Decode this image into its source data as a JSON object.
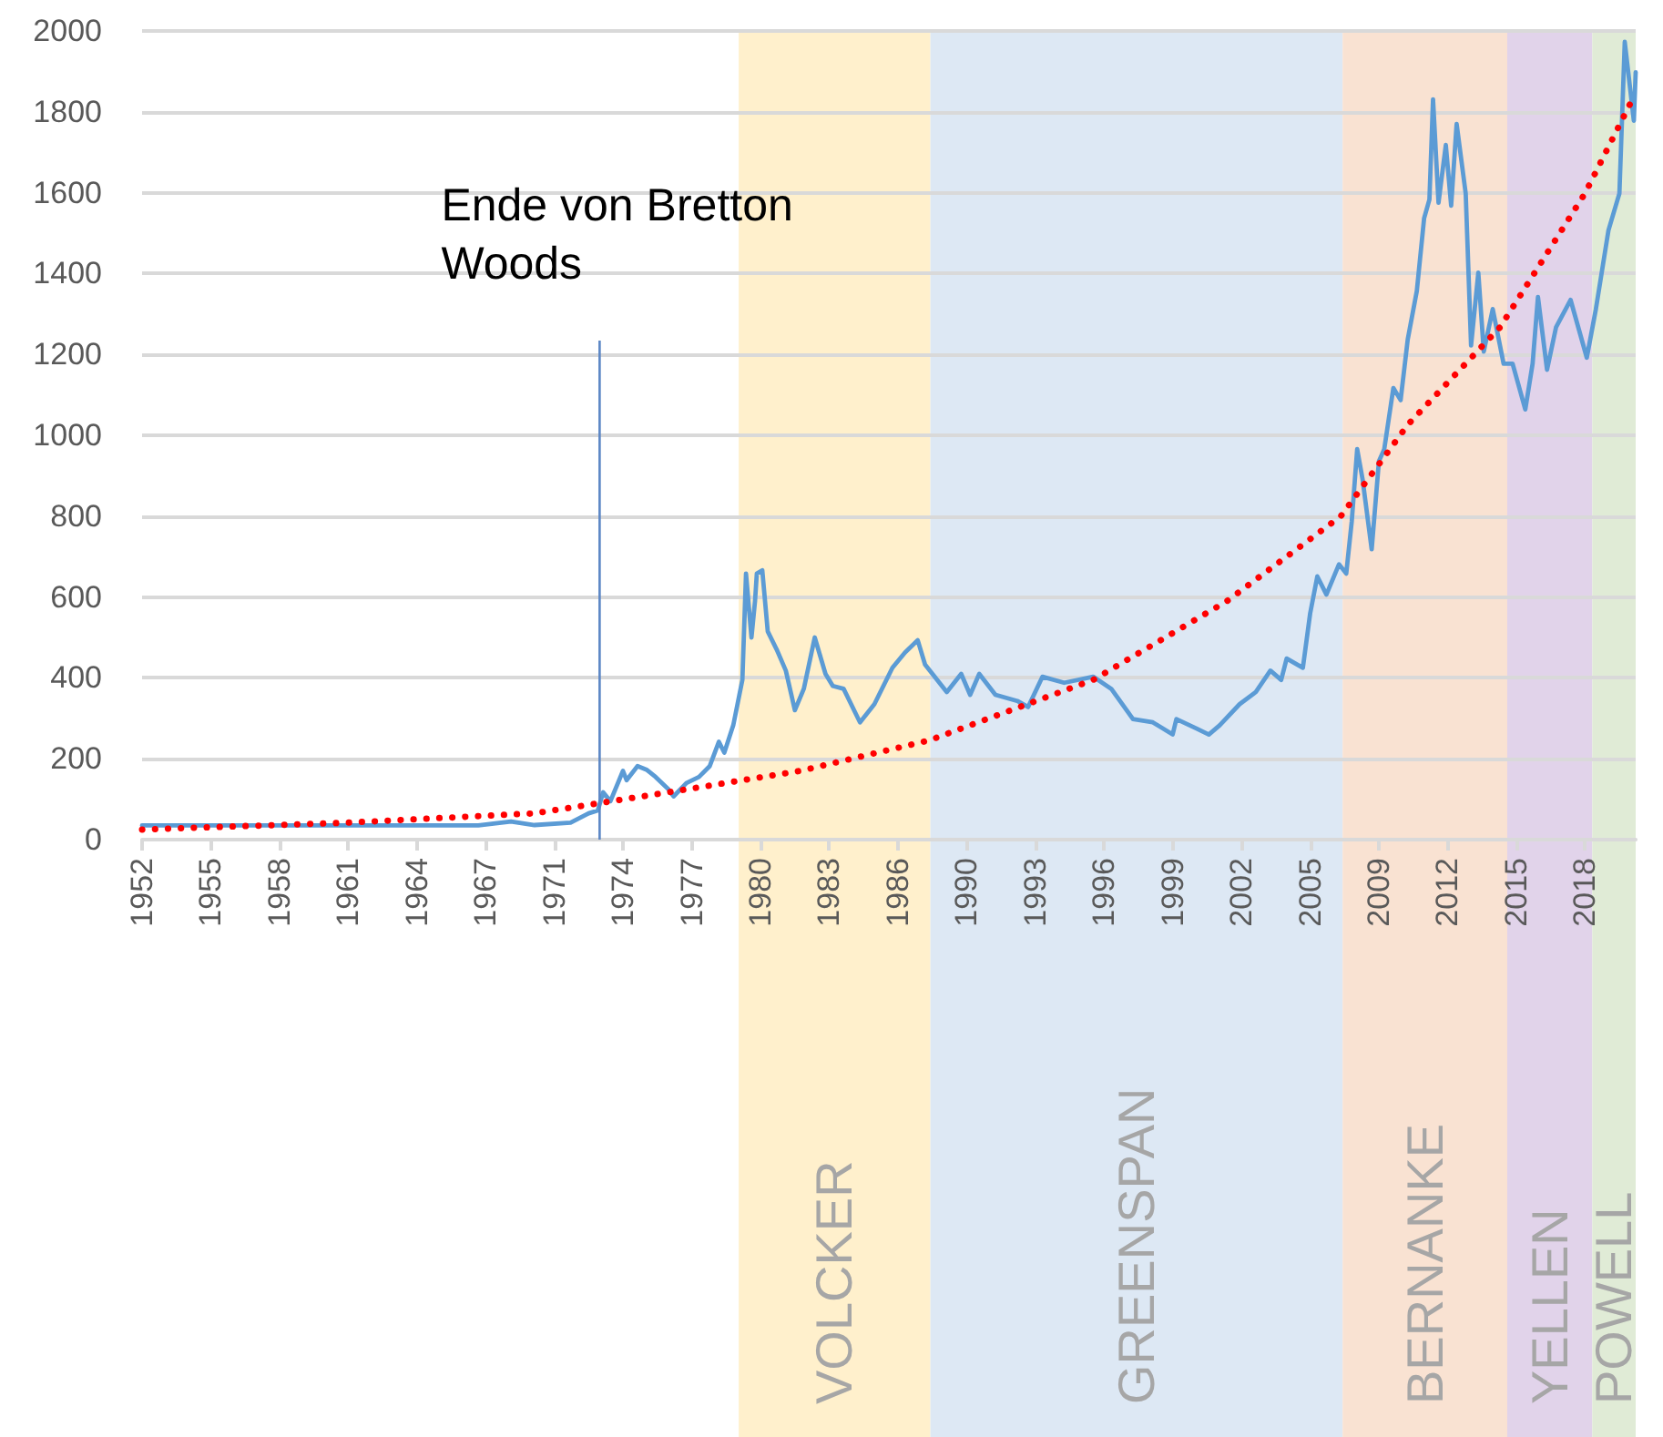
{
  "chart_data": {
    "type": "line",
    "series": [
      {
        "color": "#5b9bd5",
        "x": [
          "1952-01",
          "1967-07",
          "1969-01",
          "1970-02",
          "1971-10",
          "1972-08",
          "1973-01",
          "1973-04",
          "1973-08",
          "1974-03",
          "1974-05",
          "1974-11",
          "1975-04",
          "1975-09",
          "1976-04",
          "1976-07",
          "1977-02",
          "1977-09",
          "1978-03",
          "1978-08",
          "1978-11",
          "1979-04",
          "1979-09",
          "1979-11",
          "1980-02",
          "1980-04",
          "1980-05",
          "1980-08",
          "1980-11",
          "1981-04",
          "1981-09",
          "1982-02",
          "1982-07",
          "1983-01",
          "1983-07",
          "1983-11",
          "1984-05",
          "1985-02",
          "1985-10",
          "1986-08",
          "1987-03",
          "1987-10",
          "1988-02",
          "1989-02",
          "1989-10",
          "1990-03",
          "1990-08",
          "1991-05",
          "1992-05",
          "1992-11",
          "1993-07",
          "1994-07",
          "1995-11",
          "1996-09",
          "1997-09",
          "1998-08",
          "1999-07",
          "1999-09",
          "2000-08",
          "2001-03",
          "2001-09",
          "2002-08",
          "2003-05",
          "2004-01",
          "2004-07",
          "2004-10",
          "2005-07",
          "2005-11",
          "2006-03",
          "2006-08",
          "2007-03",
          "2007-07",
          "2007-10",
          "2008-01",
          "2008-04",
          "2008-09",
          "2009-01",
          "2009-04",
          "2009-09",
          "2010-01",
          "2010-05",
          "2010-10",
          "2011-02",
          "2011-05",
          "2011-07",
          "2011-10",
          "2012-02",
          "2012-05",
          "2012-08",
          "2013-01",
          "2013-04",
          "2013-08",
          "2013-11",
          "2014-04",
          "2014-10",
          "2015-03",
          "2015-10",
          "2016-02",
          "2016-05",
          "2016-10",
          "2017-03",
          "2017-11",
          "2018-08",
          "2019-01",
          "2019-08",
          "2020-02",
          "2020-05",
          "2020-10",
          "2020-11"
        ],
        "values": [
          35,
          35,
          45,
          36,
          42,
          65,
          72,
          117,
          95,
          170,
          147,
          182,
          173,
          155,
          125,
          107,
          140,
          155,
          182,
          242,
          215,
          283,
          395,
          658,
          500,
          590,
          658,
          666,
          515,
          470,
          418,
          320,
          373,
          500,
          410,
          380,
          373,
          290,
          335,
          425,
          463,
          493,
          433,
          365,
          410,
          358,
          410,
          358,
          343,
          328,
          403,
          388,
          403,
          373,
          298,
          290,
          260,
          298,
          275,
          260,
          283,
          335,
          365,
          418,
          395,
          448,
          425,
          560,
          651,
          606,
          681,
          658,
          786,
          966,
          891,
          718,
          936,
          966,
          1117,
          1087,
          1237,
          1357,
          1537,
          1583,
          1831,
          1575,
          1718,
          1568,
          1770,
          1598,
          1222,
          1402,
          1207,
          1312,
          1177,
          1177,
          1064,
          1177,
          1342,
          1162,
          1267,
          1335,
          1192,
          1312,
          1507,
          1598,
          1973,
          1778,
          1898
        ]
      },
      {
        "type": "line",
        "color": "#ff0000",
        "line_style": "dotted",
        "x": [
          "1952-01",
          "1961-07",
          "1970-02",
          "1976-04",
          "1982-05",
          "1988-04",
          "1995-11",
          "2002-01",
          "2007-04",
          "2010-05",
          "2014-08",
          "2018-07",
          "2020-10"
        ],
        "values": [
          25,
          42,
          65,
          117,
          170,
          245,
          395,
          590,
          800,
          1026,
          1267,
          1598,
          1838
        ]
      }
    ],
    "xlim": [
      "1952-01",
      "2020-11"
    ],
    "xticks": [
      {
        "value": "1952-01",
        "label": "1952"
      },
      {
        "value": "1955-03",
        "label": "1955"
      },
      {
        "value": "1958-05",
        "label": "1958"
      },
      {
        "value": "1961-07",
        "label": "1961"
      },
      {
        "value": "1964-09",
        "label": "1964"
      },
      {
        "value": "1967-11",
        "label": "1967"
      },
      {
        "value": "1971-01",
        "label": "1971"
      },
      {
        "value": "1974-03",
        "label": "1974"
      },
      {
        "value": "1977-05",
        "label": "1977"
      },
      {
        "value": "1980-07",
        "label": "1980"
      },
      {
        "value": "1983-09",
        "label": "1983"
      },
      {
        "value": "1986-11",
        "label": "1986"
      },
      {
        "value": "1990-01",
        "label": "1990"
      },
      {
        "value": "1993-03",
        "label": "1993"
      },
      {
        "value": "1996-05",
        "label": "1996"
      },
      {
        "value": "1999-07",
        "label": "1999"
      },
      {
        "value": "2002-09",
        "label": "2002"
      },
      {
        "value": "2005-11",
        "label": "2005"
      },
      {
        "value": "2009-01",
        "label": "2009"
      },
      {
        "value": "2012-03",
        "label": "2012"
      },
      {
        "value": "2015-05",
        "label": "2015"
      },
      {
        "value": "2018-07",
        "label": "2018"
      }
    ],
    "ylim": [
      0,
      2000
    ],
    "yticks": [
      0,
      200,
      400,
      600,
      800,
      1000,
      1200,
      1400,
      1600,
      1800,
      2000
    ],
    "grid": "y",
    "marker": "none",
    "line_style": "solid",
    "ref_lines": [
      {
        "axis": "x",
        "value": "1973-02",
        "label": "Ende von Bretton Woods",
        "color": "#5b86c5"
      }
    ],
    "bands": [
      {
        "axis": "x",
        "from": "1979-07",
        "to": "1988-05",
        "label": "VOLCKER",
        "color": "#fff0cc"
      },
      {
        "axis": "x",
        "from": "1988-05",
        "to": "2007-05",
        "label": "GREENSPAN",
        "color": "#dde8f4"
      },
      {
        "axis": "x",
        "from": "2007-05",
        "to": "2014-12",
        "label": "BERNANKE",
        "color": "#f9e2d2"
      },
      {
        "axis": "x",
        "from": "2014-12",
        "to": "2018-11",
        "label": "YELLEN",
        "color": "#e1d3ea"
      },
      {
        "axis": "x",
        "from": "2018-11",
        "to": "2020-11",
        "label": "POWELL",
        "color": "#e0ebd6"
      }
    ]
  }
}
